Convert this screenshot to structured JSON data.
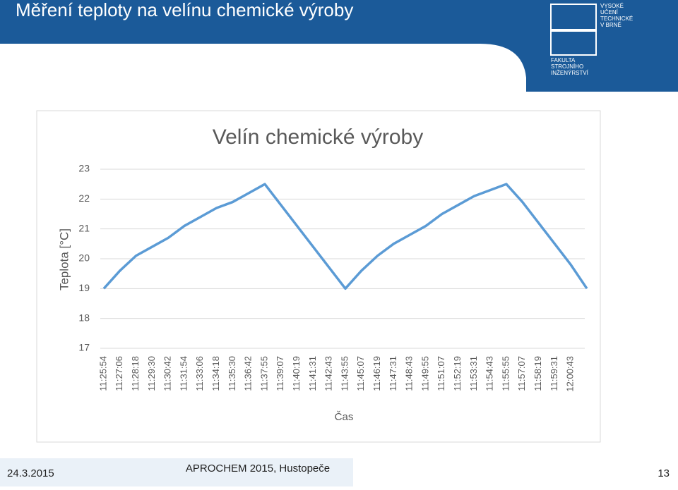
{
  "slide_title": "Měření teploty na velínu chemické výroby",
  "logo": {
    "school": [
      "VYSOKÉ",
      "UČENÍ",
      "TECHNICKÉ",
      "V BRNĚ"
    ],
    "faculty": [
      "FAKULTA",
      "STROJNÍHO",
      "INŽENÝRSTVÍ"
    ]
  },
  "footer": {
    "date": "24.3.2015",
    "event": "APROCHEM 2015, Hustopeče",
    "page": "13"
  },
  "chart_data": {
    "type": "line",
    "title": "Velín chemické výroby",
    "x_label": "Čas",
    "y_label": "Teplota [°C]",
    "categories": [
      "11:25:54",
      "11:27:06",
      "11:28:18",
      "11:29:30",
      "11:30:42",
      "11:31:54",
      "11:33:06",
      "11:34:18",
      "11:35:30",
      "11:36:42",
      "11:37:55",
      "11:39:07",
      "11:40:19",
      "11:41:31",
      "11:42:43",
      "11:43:55",
      "11:45:07",
      "11:46:19",
      "11:47:31",
      "11:48:43",
      "11:49:55",
      "11:51:07",
      "11:52:19",
      "11:53:31",
      "11:54:43",
      "11:55:55",
      "11:57:07",
      "11:58:19",
      "11:59:31",
      "12:00:43",
      null
    ],
    "series": [
      {
        "color": "#5b9bd5",
        "values": [
          19.0,
          19.6,
          20.1,
          20.4,
          20.7,
          21.1,
          21.4,
          21.7,
          21.9,
          22.2,
          22.5,
          21.8,
          21.1,
          20.4,
          19.7,
          19.0,
          19.6,
          20.1,
          20.5,
          20.8,
          21.1,
          21.5,
          21.8,
          22.1,
          22.3,
          22.5,
          21.9,
          21.2,
          20.5,
          19.8,
          19.0
        ]
      }
    ],
    "ylim": [
      17,
      23
    ],
    "yticks": [
      17,
      18,
      19,
      20,
      21,
      22,
      23
    ],
    "grid": true
  }
}
